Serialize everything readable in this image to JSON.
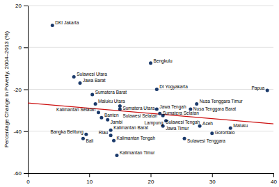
{
  "chart_data": {
    "type": "scatter",
    "ylabel": "Percentage Change in Poverty, 2004–2013 (%)",
    "xlim": [
      0,
      40
    ],
    "ylim": [
      -60,
      20
    ],
    "xticks": [
      0,
      10,
      20,
      30,
      40
    ],
    "yticks": [
      -60,
      -40,
      -20,
      0,
      20
    ],
    "grid": true,
    "series": [
      {
        "type": "scatter",
        "color": "#1b3a6b",
        "x": [
          4.0,
          7.5,
          8.5,
          10.5,
          11.0,
          11.5,
          12.0,
          13.0,
          13.5,
          13.5,
          14.0,
          15.0,
          15.0,
          9.5,
          9.0,
          14.5,
          20.0,
          21.0,
          21.0,
          21.5,
          22.0,
          22.5,
          22.0,
          25.5,
          27.5,
          26.5,
          28.0,
          30.0,
          33.0,
          39.0
        ],
        "values": [
          10.5,
          -14.0,
          -17.0,
          -22.5,
          -27.0,
          -31.0,
          -33.5,
          -34.5,
          -39.5,
          -42.0,
          -44.5,
          -29.5,
          -28.0,
          -41.5,
          -43.5,
          -51.5,
          -7.5,
          -20.0,
          -29.5,
          -31.5,
          -32.5,
          -35.0,
          -37.5,
          -43.5,
          -27.0,
          -29.5,
          -37.5,
          -41.0,
          -38.5,
          -20.5
        ],
        "labels": [
          "DKI Jakarta",
          "Sulawesi Utara",
          "Jawa Barat",
          "Sumatera Barat",
          "Maluku Utara",
          "Kalimantan Selatan",
          "Banten",
          "Jambi",
          "Kalimantan Barat",
          "Riau",
          "Kalimantan Tengah",
          "Sulawesi Selatan",
          "Sumatera Utara",
          "Bangka Belitung",
          "Bali",
          "Kalimantan Timur",
          "Bengkulu",
          "DI Yogyakarta",
          "Jawa Tengah",
          "Sumatera Selatan",
          "Sulawesi Tengah",
          "Lampung",
          "Jawa Timur",
          "Sulawesi Tenggara",
          "Nusa Tenggara Timur",
          "Nusa Tenggara Barat",
          "Aceh",
          "Gorontalo",
          "Maluku",
          "Papua"
        ]
      },
      {
        "type": "line",
        "color": "#cc1111",
        "x": [
          0,
          40
        ],
        "values": [
          -26.5,
          -36.5
        ]
      }
    ]
  }
}
